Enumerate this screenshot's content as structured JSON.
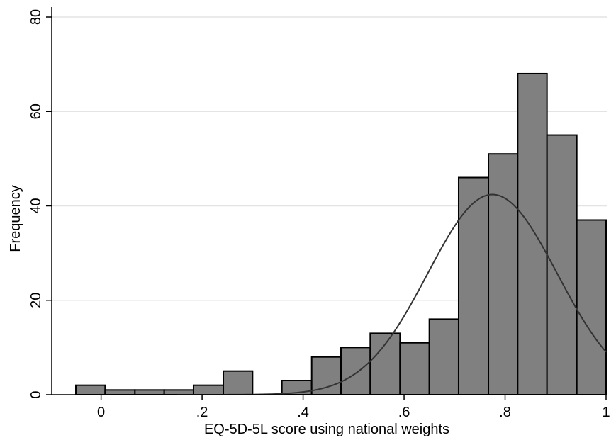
{
  "chart_data": {
    "type": "bar",
    "title": "",
    "xlabel": "EQ-5D-5L score using national weights",
    "ylabel": "Frequency",
    "x_ticks": [
      {
        "value": 0,
        "label": "0"
      },
      {
        "value": 0.2,
        "label": ".2"
      },
      {
        "value": 0.4,
        "label": ".4"
      },
      {
        "value": 0.6,
        "label": ".6"
      },
      {
        "value": 0.8,
        "label": ".8"
      },
      {
        "value": 1.0,
        "label": "1"
      }
    ],
    "y_ticks": [
      {
        "value": 0,
        "label": "0"
      },
      {
        "value": 20,
        "label": "20"
      },
      {
        "value": 40,
        "label": "40"
      },
      {
        "value": 60,
        "label": "60"
      },
      {
        "value": 80,
        "label": "80"
      }
    ],
    "xlim": [
      -0.05,
      1.0
    ],
    "ylim": [
      0,
      80
    ],
    "grid": "horizontal",
    "bin_width": 0.0583,
    "bins": [
      {
        "x0": -0.05,
        "x1": 0.008,
        "count": 2
      },
      {
        "x0": 0.008,
        "x1": 0.067,
        "count": 1
      },
      {
        "x0": 0.067,
        "x1": 0.125,
        "count": 1
      },
      {
        "x0": 0.125,
        "x1": 0.183,
        "count": 1
      },
      {
        "x0": 0.183,
        "x1": 0.242,
        "count": 2
      },
      {
        "x0": 0.242,
        "x1": 0.3,
        "count": 5
      },
      {
        "x0": 0.3,
        "x1": 0.358,
        "count": 0
      },
      {
        "x0": 0.358,
        "x1": 0.417,
        "count": 3
      },
      {
        "x0": 0.417,
        "x1": 0.475,
        "count": 8
      },
      {
        "x0": 0.475,
        "x1": 0.533,
        "count": 10
      },
      {
        "x0": 0.533,
        "x1": 0.592,
        "count": 13
      },
      {
        "x0": 0.592,
        "x1": 0.65,
        "count": 11
      },
      {
        "x0": 0.65,
        "x1": 0.708,
        "count": 16
      },
      {
        "x0": 0.708,
        "x1": 0.767,
        "count": 46
      },
      {
        "x0": 0.767,
        "x1": 0.825,
        "count": 51
      },
      {
        "x0": 0.825,
        "x1": 0.883,
        "count": 68
      },
      {
        "x0": 0.883,
        "x1": 0.942,
        "count": 55
      },
      {
        "x0": 0.942,
        "x1": 1.0,
        "count": 37
      }
    ],
    "normal_curve": {
      "mean": 0.775,
      "sd": 0.128,
      "peak": 42.4,
      "x_range": [
        0.15,
        1.0
      ]
    },
    "colors": {
      "bar_fill": "#808080",
      "bar_stroke": "#000000",
      "curve": "#333333",
      "grid": "#e3e3e3",
      "axis": "#000000"
    }
  }
}
